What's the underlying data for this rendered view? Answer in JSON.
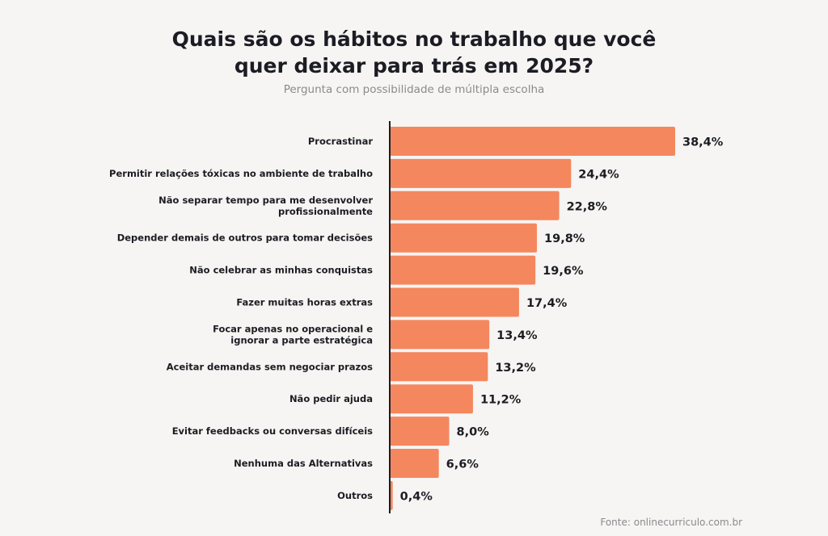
{
  "chart_data": {
    "type": "bar",
    "orientation": "horizontal",
    "title_lines": [
      "Quais são os hábitos no trabalho que você",
      "quer deixar para trás em 2025?"
    ],
    "subtitle": "Pergunta com possibilidade de múltipla escolha",
    "categories": [
      [
        "Procrastinar"
      ],
      [
        "Permitir relações tóxicas no ambiente de trabalho"
      ],
      [
        "Não separar tempo para me desenvolver",
        "profissionalmente"
      ],
      [
        "Depender demais de outros para tomar decisões"
      ],
      [
        "Não celebrar as minhas conquistas"
      ],
      [
        "Fazer muitas horas extras"
      ],
      [
        "Focar apenas no operacional e",
        "ignorar a parte estratégica"
      ],
      [
        "Aceitar demandas sem negociar prazos"
      ],
      [
        "Não pedir ajuda"
      ],
      [
        "Evitar feedbacks ou conversas difíceis"
      ],
      [
        "Nenhuma das Alternativas"
      ],
      [
        "Outros"
      ]
    ],
    "values": [
      38.4,
      24.4,
      22.8,
      19.8,
      19.6,
      17.4,
      13.4,
      13.2,
      11.2,
      8.0,
      6.6,
      0.4
    ],
    "value_labels": [
      "38,4%",
      "24,4%",
      "22,8%",
      "19,8%",
      "19,6%",
      "17,4%",
      "13,4%",
      "13,2%",
      "11,2%",
      "8,0%",
      "6,6%",
      "0,4%"
    ],
    "unit": "%",
    "bar_color": "#f5875e",
    "axis_color": "#1c1c24",
    "grid": false,
    "legend": "none"
  },
  "source": "Fonte: onlinecurriculo.com.br"
}
